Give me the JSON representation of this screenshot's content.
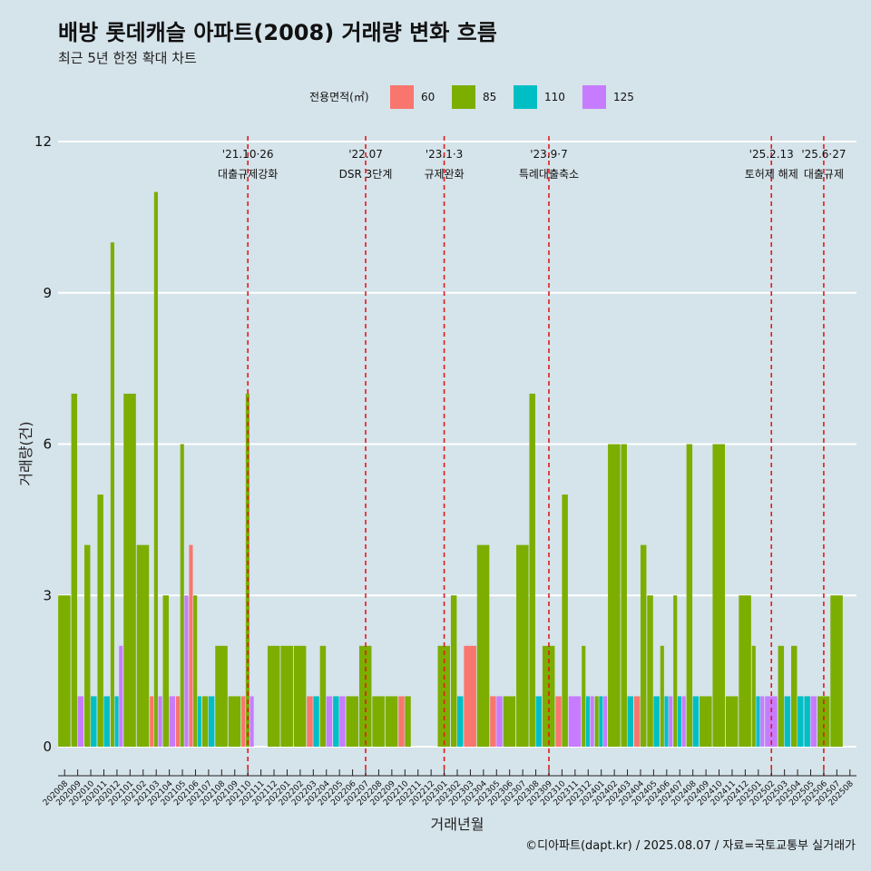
{
  "title": "배방 롯데캐슬 아파트(2008) 거래량 변화 흐름",
  "subtitle": "최근 5년 한정 확대 차트",
  "caption": "©디아파트(dapt.kr) / 2025.08.07 / 자료=국토교통부 실거래가",
  "legend": {
    "title": "전용면적(㎡)",
    "items": [
      {
        "label": "60",
        "color": "#f8766d"
      },
      {
        "label": "85",
        "color": "#7cae00"
      },
      {
        "label": "110",
        "color": "#00bfc4"
      },
      {
        "label": "125",
        "color": "#c77cff"
      }
    ]
  },
  "chart_data": {
    "type": "bar",
    "xlabel": "거래년월",
    "ylabel": "거래량(건)",
    "ylim": [
      0,
      12
    ],
    "yticks": [
      "0",
      "3",
      "6",
      "9",
      "12"
    ],
    "categories": [
      "202008",
      "202009",
      "202010",
      "202011",
      "202012",
      "202101",
      "202102",
      "202103",
      "202104",
      "202105",
      "202106",
      "202107",
      "202108",
      "202109",
      "202110",
      "202111",
      "202112",
      "202201",
      "202202",
      "202203",
      "202204",
      "202205",
      "202206",
      "202207",
      "202208",
      "202209",
      "202210",
      "202211",
      "202212",
      "202301",
      "202302",
      "202303",
      "202304",
      "202305",
      "202306",
      "202307",
      "202308",
      "202309",
      "202310",
      "202311",
      "202312",
      "202401",
      "202402",
      "202403",
      "202404",
      "202405",
      "202406",
      "202407",
      "202408",
      "202409",
      "202410",
      "202411",
      "202412",
      "202501",
      "202502",
      "202503",
      "202504",
      "202505",
      "202506",
      "202507",
      "202508"
    ],
    "series": [
      {
        "name": "60",
        "color": "#f8766d",
        "values": [
          0,
          0,
          0,
          0,
          0,
          0,
          0,
          1,
          0,
          1,
          4,
          0,
          0,
          0,
          1,
          0,
          0,
          0,
          0,
          1,
          0,
          0,
          0,
          0,
          0,
          0,
          1,
          0,
          0,
          0,
          0,
          2,
          0,
          1,
          0,
          0,
          0,
          0,
          1,
          0,
          0,
          0,
          0,
          0,
          1,
          0,
          0,
          0,
          0,
          0,
          0,
          0,
          0,
          0,
          0,
          0,
          0,
          0,
          0,
          0,
          0
        ]
      },
      {
        "name": "85",
        "color": "#7cae00",
        "values": [
          3,
          7,
          4,
          5,
          10,
          7,
          4,
          11,
          3,
          6,
          3,
          1,
          2,
          1,
          7,
          0,
          2,
          2,
          2,
          0,
          2,
          0,
          1,
          2,
          1,
          1,
          1,
          0,
          0,
          2,
          3,
          0,
          4,
          0,
          1,
          4,
          7,
          2,
          5,
          0,
          2,
          1,
          6,
          6,
          4,
          3,
          2,
          3,
          6,
          1,
          6,
          1,
          3,
          2,
          0,
          2,
          2,
          0,
          1,
          3,
          0
        ]
      },
      {
        "name": "110",
        "color": "#00bfc4",
        "values": [
          0,
          0,
          1,
          1,
          1,
          0,
          0,
          0,
          0,
          0,
          1,
          1,
          0,
          0,
          0,
          0,
          0,
          0,
          0,
          1,
          0,
          1,
          0,
          0,
          0,
          0,
          0,
          0,
          0,
          0,
          1,
          0,
          0,
          0,
          0,
          0,
          1,
          0,
          0,
          0,
          1,
          1,
          0,
          1,
          0,
          1,
          1,
          1,
          1,
          0,
          0,
          0,
          0,
          1,
          0,
          1,
          1,
          1,
          0,
          0,
          0
        ]
      },
      {
        "name": "125",
        "color": "#c77cff",
        "values": [
          0,
          1,
          0,
          0,
          2,
          0,
          0,
          1,
          1,
          3,
          0,
          0,
          0,
          0,
          1,
          0,
          0,
          0,
          0,
          0,
          1,
          1,
          0,
          0,
          0,
          0,
          0,
          0,
          0,
          0,
          0,
          0,
          0,
          1,
          0,
          0,
          0,
          0,
          0,
          1,
          1,
          1,
          0,
          0,
          0,
          0,
          1,
          1,
          0,
          0,
          0,
          0,
          0,
          1,
          1,
          0,
          0,
          1,
          0,
          0,
          0
        ]
      }
    ],
    "annotations": [
      {
        "date": "'21.10·26",
        "label": "대출규제강화",
        "category": "202110"
      },
      {
        "date": "'22.07",
        "label": "DSR 3단계",
        "category": "202207"
      },
      {
        "date": "'23.1·3",
        "label": "규제완화",
        "category": "202301"
      },
      {
        "date": "'23.9·7",
        "label": "특례대출축소",
        "category": "202309"
      },
      {
        "date": "'25.2.13",
        "label": "토허제 해제",
        "category": "202502"
      },
      {
        "date": "'25.6·27",
        "label": "대출규제",
        "category": "202506"
      }
    ]
  }
}
